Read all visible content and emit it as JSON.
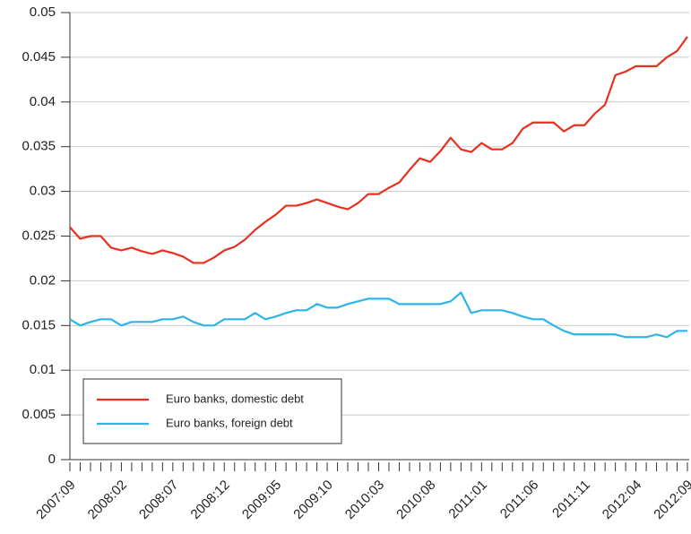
{
  "chart_data": {
    "type": "line",
    "categories": [
      "2007:09",
      null,
      null,
      null,
      null,
      "2008:02",
      null,
      null,
      null,
      null,
      "2008:07",
      null,
      null,
      null,
      null,
      "2008:12",
      null,
      null,
      null,
      null,
      "2009:05",
      null,
      null,
      null,
      null,
      "2009:10",
      null,
      null,
      null,
      null,
      "2010:03",
      null,
      null,
      null,
      null,
      "2010:08",
      null,
      null,
      null,
      null,
      "2011:01",
      null,
      null,
      null,
      null,
      "2011:06",
      null,
      null,
      null,
      null,
      "2011:11",
      null,
      null,
      null,
      null,
      "2012:04",
      null,
      null,
      null,
      null,
      "2012:09"
    ],
    "series": [
      {
        "name": "Euro banks, domestic debt",
        "color": "#e8301e",
        "values": [
          0.026,
          0.0247,
          0.025,
          0.025,
          0.0237,
          0.0234,
          0.0237,
          0.0233,
          0.023,
          0.0234,
          0.0231,
          0.0227,
          0.022,
          0.022,
          0.0226,
          0.0234,
          0.0238,
          0.0246,
          0.0257,
          0.0266,
          0.0274,
          0.0284,
          0.0284,
          0.0287,
          0.0291,
          0.0287,
          0.0283,
          0.028,
          0.0287,
          0.0297,
          0.0297,
          0.0304,
          0.031,
          0.0324,
          0.0337,
          0.0333,
          0.0345,
          0.036,
          0.0347,
          0.0344,
          0.0354,
          0.0347,
          0.0347,
          0.0354,
          0.037,
          0.0377,
          0.0377,
          0.0377,
          0.0367,
          0.0374,
          0.0374,
          0.0387,
          0.0397,
          0.043,
          0.0434,
          0.044,
          0.044,
          0.044,
          0.045,
          0.0457,
          0.0473
        ]
      },
      {
        "name": "Euro banks, foreign debt",
        "color": "#2bb5e8",
        "values": [
          0.0157,
          0.015,
          0.0154,
          0.0157,
          0.0157,
          0.015,
          0.0154,
          0.0154,
          0.0154,
          0.0157,
          0.0157,
          0.016,
          0.0154,
          0.015,
          0.015,
          0.0157,
          0.0157,
          0.0157,
          0.0164,
          0.0157,
          0.016,
          0.0164,
          0.0167,
          0.0167,
          0.0174,
          0.017,
          0.017,
          0.0174,
          0.0177,
          0.018,
          0.018,
          0.018,
          0.0174,
          0.0174,
          0.0174,
          0.0174,
          0.0174,
          0.0177,
          0.0187,
          0.0164,
          0.0167,
          0.0167,
          0.0167,
          0.0164,
          0.016,
          0.0157,
          0.0157,
          0.015,
          0.0144,
          0.014,
          0.014,
          0.014,
          0.014,
          0.014,
          0.0137,
          0.0137,
          0.0137,
          0.014,
          0.0137,
          0.0144,
          0.0144
        ]
      }
    ],
    "ylim": [
      0,
      0.05
    ],
    "yticks": [
      0,
      0.005,
      0.01,
      0.015,
      0.02,
      0.025,
      0.03,
      0.035,
      0.04,
      0.045,
      0.05
    ],
    "grid": true,
    "legend": "lower left"
  }
}
